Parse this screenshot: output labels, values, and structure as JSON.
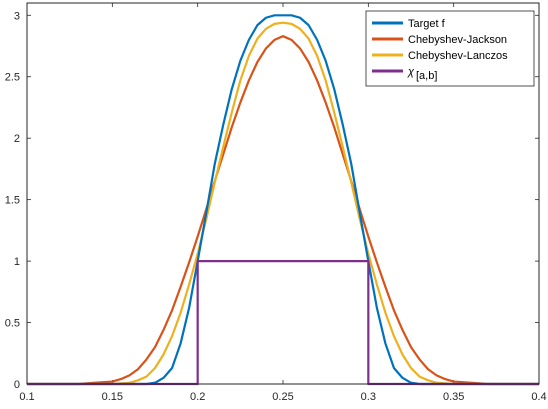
{
  "chart_data": {
    "type": "line",
    "title": "",
    "xlabel": "",
    "ylabel": "",
    "xlim": [
      0.1,
      0.4
    ],
    "ylim": [
      0,
      3.1
    ],
    "grid": false,
    "legend_position": "top-right",
    "xticks": [
      "0.1",
      "0.15",
      "0.2",
      "0.25",
      "0.3",
      "0.35",
      "0.4"
    ],
    "yticks": [
      "0",
      "0.5",
      "1",
      "1.5",
      "2",
      "2.5",
      "3"
    ],
    "series": [
      {
        "name": "Target f",
        "color": "#0072BD",
        "x": [
          0.1,
          0.17,
          0.175,
          0.18,
          0.185,
          0.19,
          0.195,
          0.2,
          0.205,
          0.21,
          0.215,
          0.22,
          0.225,
          0.23,
          0.235,
          0.24,
          0.245,
          0.25,
          0.255,
          0.26,
          0.265,
          0.27,
          0.275,
          0.28,
          0.285,
          0.29,
          0.295,
          0.3,
          0.305,
          0.31,
          0.315,
          0.32,
          0.325,
          0.33,
          0.4
        ],
        "y": [
          0,
          0,
          0.01,
          0.05,
          0.13,
          0.33,
          0.62,
          1.0,
          1.39,
          1.79,
          2.11,
          2.4,
          2.63,
          2.8,
          2.92,
          2.98,
          3.0,
          3.0,
          3.0,
          2.98,
          2.92,
          2.8,
          2.63,
          2.4,
          2.11,
          1.79,
          1.39,
          1.0,
          0.62,
          0.33,
          0.13,
          0.05,
          0.01,
          0,
          0
        ]
      },
      {
        "name": "Chebyshev-Jackson",
        "color": "#D95319",
        "x": [
          0.1,
          0.13,
          0.14,
          0.15,
          0.155,
          0.16,
          0.165,
          0.17,
          0.175,
          0.18,
          0.185,
          0.19,
          0.195,
          0.2,
          0.205,
          0.21,
          0.215,
          0.22,
          0.225,
          0.23,
          0.235,
          0.24,
          0.245,
          0.25,
          0.255,
          0.26,
          0.265,
          0.27,
          0.275,
          0.28,
          0.285,
          0.29,
          0.295,
          0.3,
          0.305,
          0.31,
          0.315,
          0.32,
          0.325,
          0.33,
          0.335,
          0.34,
          0.345,
          0.35,
          0.36,
          0.37,
          0.4
        ],
        "y": [
          0,
          0,
          0.01,
          0.02,
          0.04,
          0.07,
          0.12,
          0.2,
          0.3,
          0.44,
          0.6,
          0.79,
          0.99,
          1.2,
          1.42,
          1.65,
          1.87,
          2.09,
          2.29,
          2.47,
          2.62,
          2.73,
          2.8,
          2.83,
          2.8,
          2.73,
          2.62,
          2.47,
          2.29,
          2.09,
          1.87,
          1.65,
          1.42,
          1.2,
          0.99,
          0.79,
          0.6,
          0.44,
          0.3,
          0.2,
          0.12,
          0.07,
          0.04,
          0.02,
          0.01,
          0,
          0
        ]
      },
      {
        "name": "Chebyshev-Lanczos",
        "color": "#EDB120",
        "x": [
          0.1,
          0.15,
          0.16,
          0.165,
          0.17,
          0.175,
          0.18,
          0.185,
          0.19,
          0.195,
          0.2,
          0.205,
          0.21,
          0.215,
          0.22,
          0.225,
          0.23,
          0.235,
          0.24,
          0.245,
          0.25,
          0.255,
          0.26,
          0.265,
          0.27,
          0.275,
          0.28,
          0.285,
          0.29,
          0.295,
          0.3,
          0.305,
          0.31,
          0.315,
          0.32,
          0.325,
          0.33,
          0.335,
          0.34,
          0.35,
          0.4
        ],
        "y": [
          0,
          0,
          0.01,
          0.03,
          0.06,
          0.13,
          0.24,
          0.39,
          0.58,
          0.81,
          1.06,
          1.34,
          1.64,
          1.93,
          2.21,
          2.47,
          2.67,
          2.81,
          2.89,
          2.93,
          2.94,
          2.93,
          2.89,
          2.81,
          2.67,
          2.47,
          2.21,
          1.93,
          1.64,
          1.34,
          1.06,
          0.81,
          0.58,
          0.39,
          0.24,
          0.13,
          0.06,
          0.03,
          0.01,
          0,
          0
        ]
      },
      {
        "name": "χ",
        "name_subscript": "[a,b]",
        "color": "#7E2F8E",
        "x": [
          0.1,
          0.2,
          0.2,
          0.3,
          0.3,
          0.4
        ],
        "y": [
          0,
          0,
          1,
          1,
          0,
          0
        ]
      }
    ]
  }
}
